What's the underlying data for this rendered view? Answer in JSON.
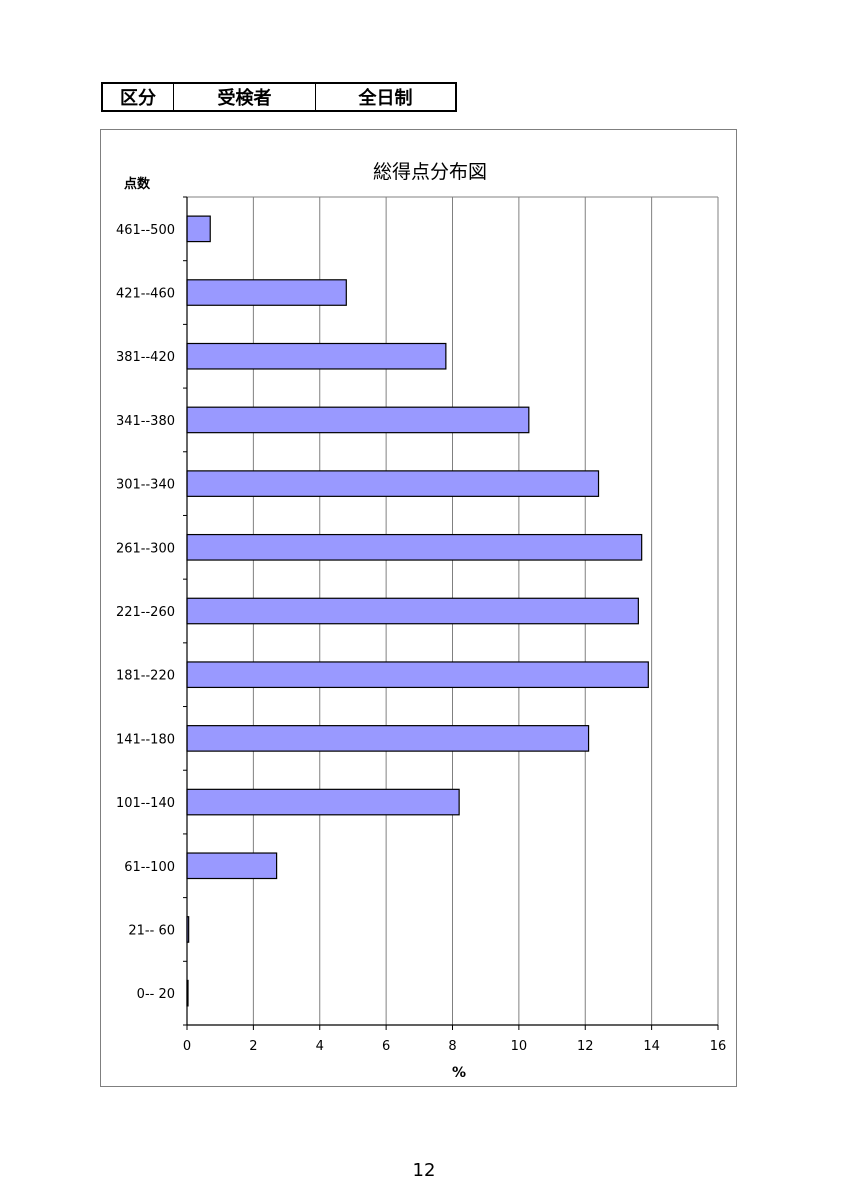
{
  "header": {
    "col1": "区分",
    "col2": "受検者",
    "col3": "全日制"
  },
  "chart_data": {
    "type": "bar",
    "orientation": "horizontal",
    "title": "総得点分布図",
    "ylabel": "点数",
    "xlabel": "%",
    "categories": [
      "461--500",
      "421--460",
      "381--420",
      "341--380",
      "301--340",
      "261--300",
      "221--260",
      "181--220",
      "141--180",
      "101--140",
      "61--100",
      "21-- 60",
      "0-- 20"
    ],
    "values": [
      0.7,
      4.8,
      7.8,
      10.3,
      12.4,
      13.7,
      13.6,
      13.9,
      12.1,
      8.2,
      2.7,
      0.05,
      0.02
    ],
    "xlim": [
      0,
      16
    ],
    "xticks": [
      "0",
      "2",
      "4",
      "6",
      "8",
      "10",
      "12",
      "14",
      "16"
    ],
    "grid": "vertical",
    "legend": "none",
    "bar_color": "#9999FF"
  },
  "page": {
    "number": "12"
  }
}
